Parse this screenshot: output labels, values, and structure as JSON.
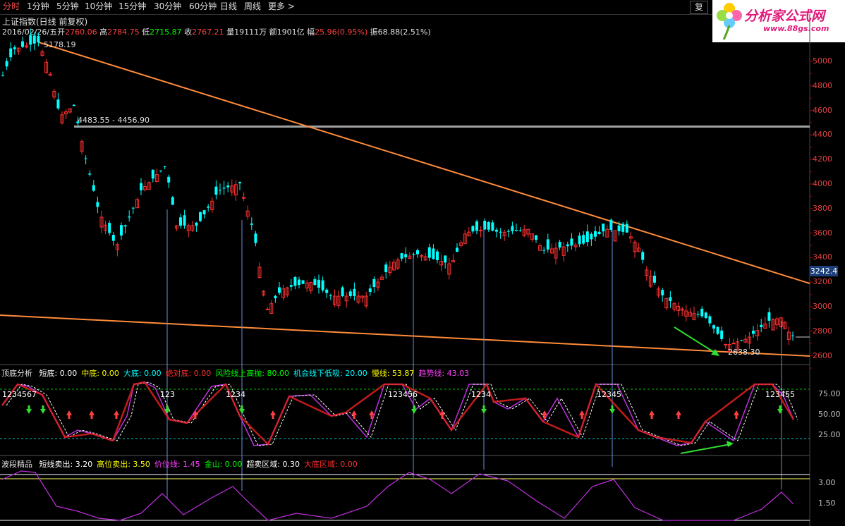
{
  "toolbar": {
    "tabs": [
      "分时",
      "1分钟",
      "5分钟",
      "10分钟",
      "15分钟",
      "30分钟",
      "60分钟",
      "日线",
      "周线",
      "更多 >"
    ],
    "active_tab": "分时",
    "fuquan_label": "复"
  },
  "brand": {
    "name": "分析家公式网",
    "url": "www.88gs.com"
  },
  "info": {
    "title": "上证指数(日线 前复权)",
    "date": "2016/02/26/五",
    "open_label": "开",
    "open": "2760.06",
    "high_label": "高",
    "high": "2784.75",
    "low_label": "低",
    "low": "2715.87",
    "close_label": "收",
    "close": "2767.21",
    "vol_label": "量",
    "vol": "19111万",
    "amt_label": "额",
    "amt": "1901亿",
    "chg_label": "幅",
    "chg": "25.96(0.95%)",
    "amp_label": "振",
    "amp": "68.88(2.51%)"
  },
  "main_chart": {
    "peak_label": "5178.19",
    "level_label": "4483.55 - 4456.90",
    "low_label": "2638.30",
    "current_price": "3242.4",
    "y_ticks": [
      "5000",
      "4800",
      "4600",
      "4400",
      "4200",
      "4000",
      "3800",
      "3600",
      "3400",
      "3200",
      "3000",
      "2800",
      "2600"
    ]
  },
  "osc1": {
    "name": "顶底分析",
    "items": [
      {
        "label": "短底:",
        "value": "0.00",
        "color": "#ffffff"
      },
      {
        "label": "中底:",
        "value": "0.00",
        "color": "#ffff00"
      },
      {
        "label": "大底:",
        "value": "0.00",
        "color": "#00ffff"
      },
      {
        "label": "绝对底:",
        "value": "0.00",
        "color": "#ff3030"
      },
      {
        "label": "风险线上高抛:",
        "value": "80.00",
        "color": "#00ff00"
      },
      {
        "label": "机会线下低吸:",
        "value": "20.00",
        "color": "#00ffff"
      },
      {
        "label": "慢线:",
        "value": "53.87",
        "color": "#ffff00"
      },
      {
        "label": "趋势线:",
        "value": "43.03",
        "color": "#ff40ff"
      }
    ],
    "y_ticks": [
      "75.00",
      "50.00",
      "25.00"
    ],
    "wave_labels": [
      "1234567",
      "123",
      "1234",
      "123456",
      "1234",
      "12345",
      "123455"
    ]
  },
  "osc2": {
    "name": "波段精品",
    "items": [
      {
        "label": "短线卖出:",
        "value": "3.20",
        "color": "#ffffff"
      },
      {
        "label": "高位卖出:",
        "value": "3.50",
        "color": "#ffff00"
      },
      {
        "label": "价位线:",
        "value": "1.45",
        "color": "#ff40ff"
      },
      {
        "label": "金山:",
        "value": "0.00",
        "color": "#00ff00"
      },
      {
        "label": "超卖区域:",
        "value": "0.30",
        "color": "#ffffff"
      },
      {
        "label": "大底区域:",
        "value": "0.00",
        "color": "#ff3030"
      }
    ],
    "y_ticks": [
      "3.00",
      "1.50"
    ]
  },
  "colors": {
    "up": "#ff3030",
    "down": "#00ffff",
    "trend": "#ff8c3a",
    "level": "#a0a0a0"
  }
}
